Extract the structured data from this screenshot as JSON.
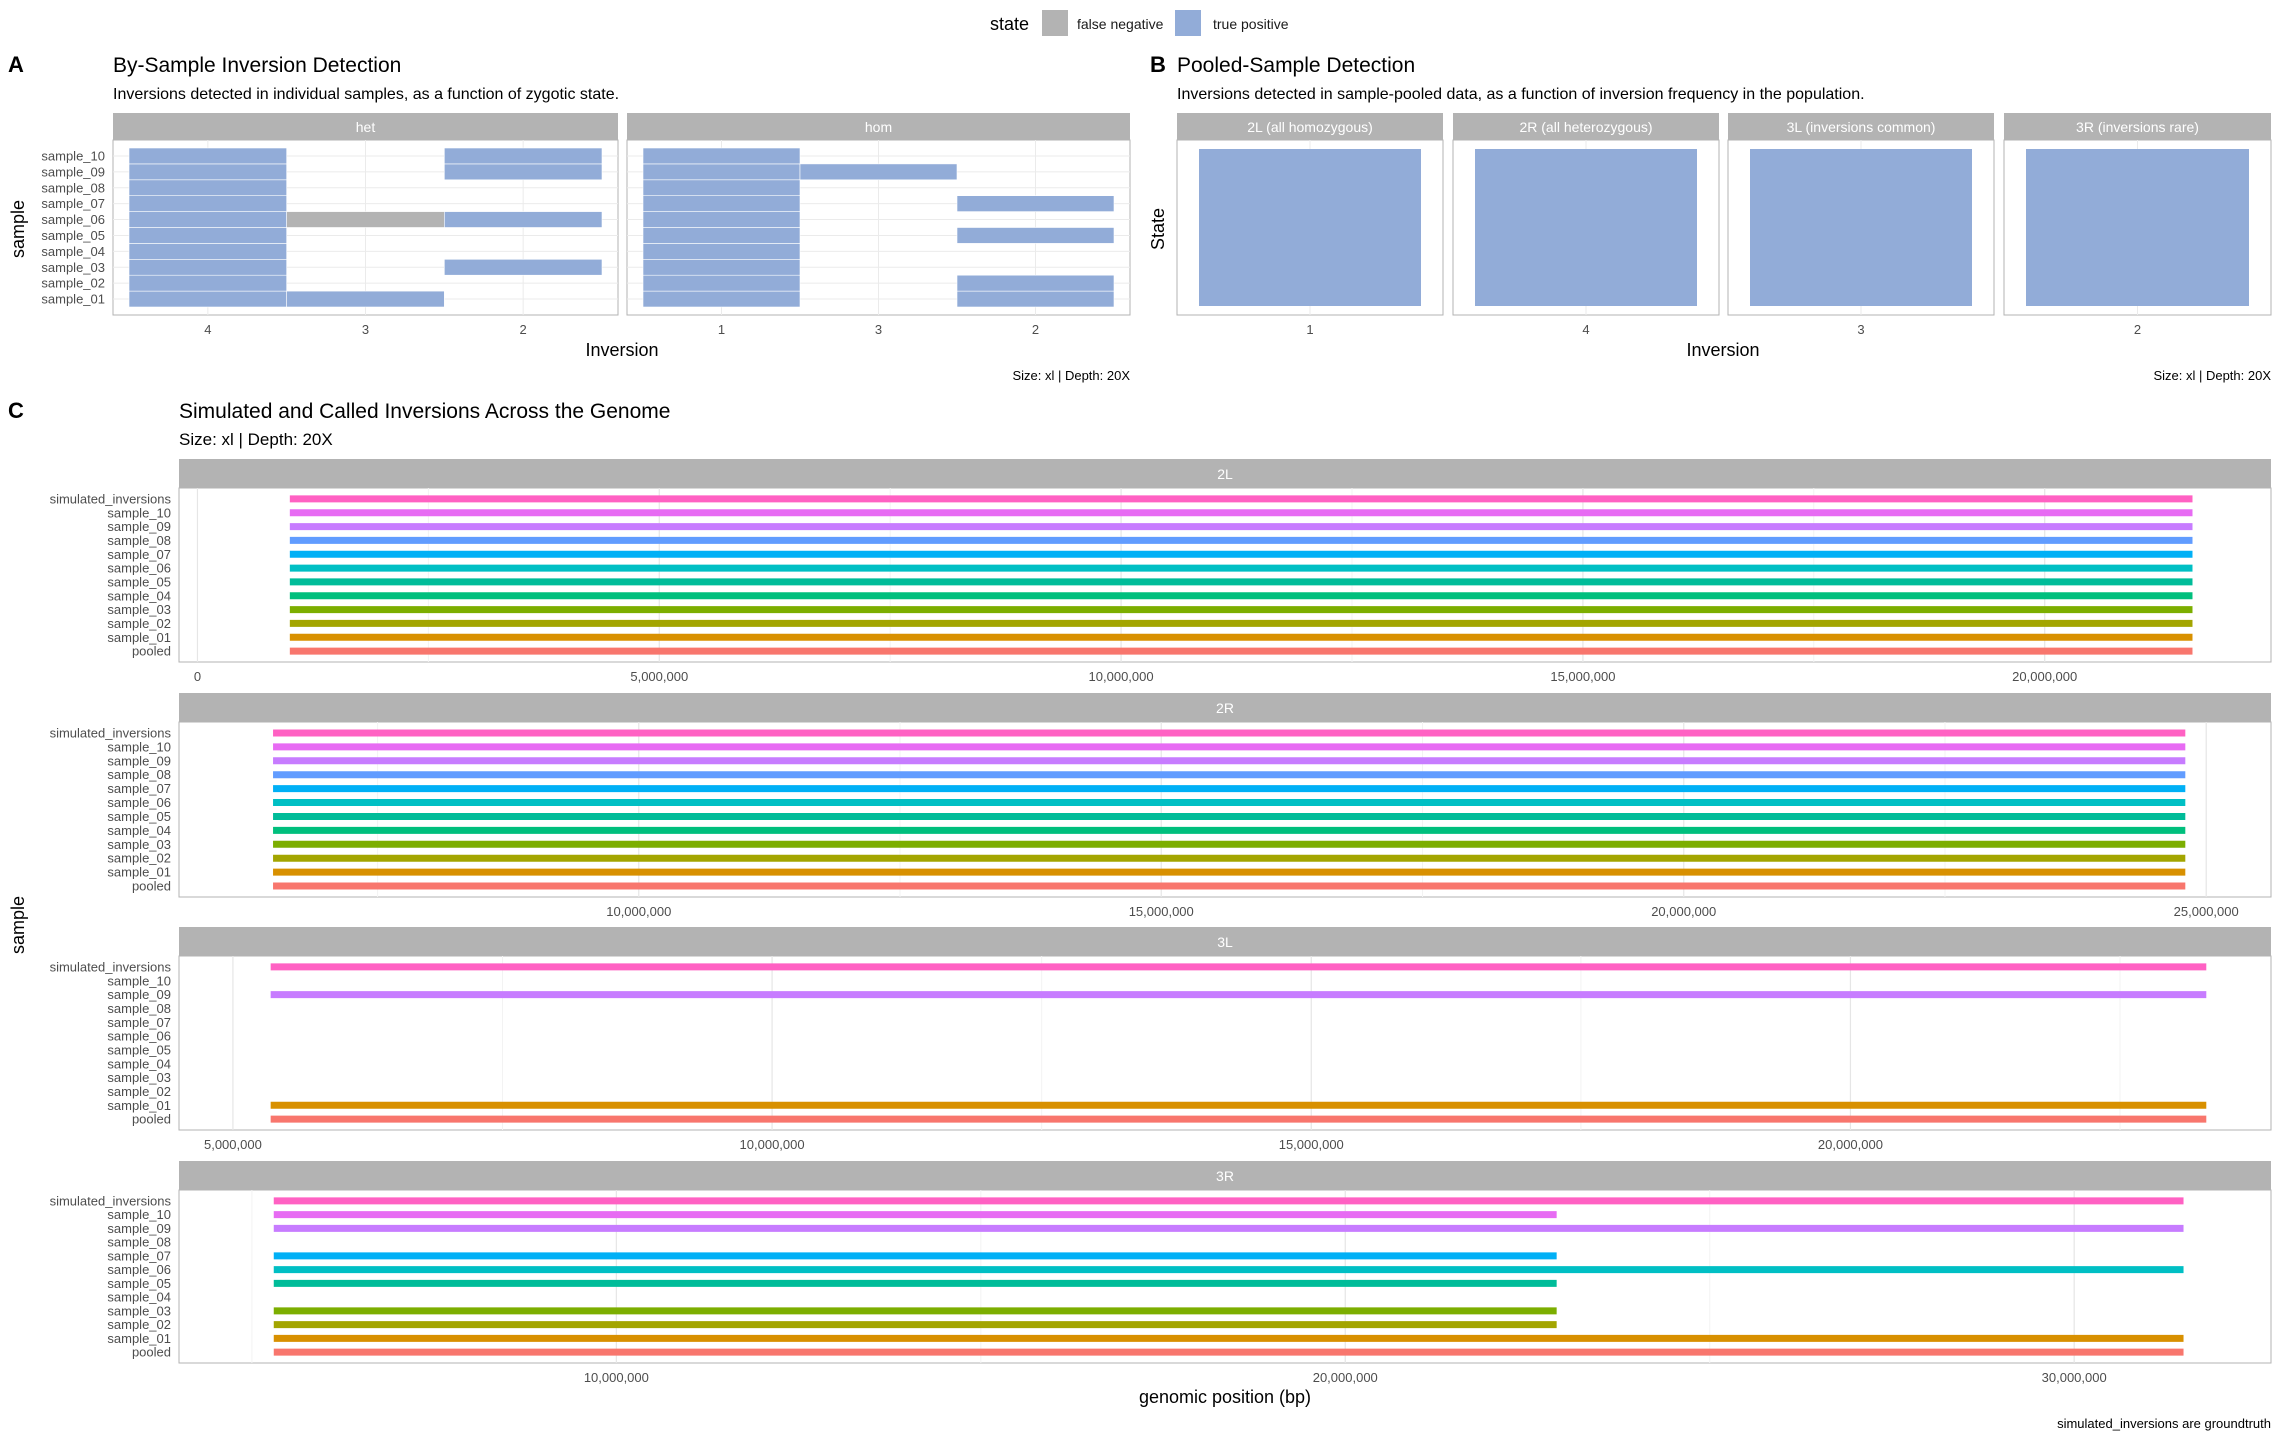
{
  "legend": {
    "title": "state",
    "items": [
      {
        "label": "false negative",
        "color": "#b3b3b3"
      },
      {
        "label": "true positive",
        "color": "#92acd8"
      }
    ]
  },
  "panel_a": {
    "letter": "A",
    "title": "By-Sample Inversion Detection",
    "subtitle": "Inversions detected in individual samples, as a function of zygotic state.",
    "xlabel": "Inversion",
    "ylabel": "sample",
    "caption": "Size: xl | Depth: 20X"
  },
  "panel_b": {
    "letter": "B",
    "title": "Pooled-Sample Detection",
    "subtitle": "Inversions detected in sample-pooled data, as a function of inversion frequency in the population.",
    "xlabel": "Inversion",
    "ylabel": "State",
    "caption": "Size: xl | Depth: 20X"
  },
  "panel_c": {
    "letter": "C",
    "title": "Simulated and Called Inversions Across the Genome",
    "subtitle": "Size: xl | Depth: 20X",
    "xlabel": "genomic position (bp)",
    "ylabel": "sample",
    "caption": "simulated_inversions are groundtruth"
  },
  "chart_data": [
    {
      "type": "heatmap",
      "id": "A",
      "title": "By-Sample Inversion Detection",
      "subtitle": "Inversions detected in individual samples, as a function of zygotic state.",
      "xlabel": "Inversion",
      "ylabel": "sample",
      "samples": [
        "sample_01",
        "sample_02",
        "sample_03",
        "sample_04",
        "sample_05",
        "sample_06",
        "sample_07",
        "sample_08",
        "sample_09",
        "sample_10"
      ],
      "facets": [
        {
          "name": "het",
          "categories": [
            "4",
            "3",
            "2"
          ],
          "cells": [
            {
              "x": "4",
              "y": "sample_01",
              "state": "true positive"
            },
            {
              "x": "4",
              "y": "sample_02",
              "state": "true positive"
            },
            {
              "x": "4",
              "y": "sample_03",
              "state": "true positive"
            },
            {
              "x": "4",
              "y": "sample_04",
              "state": "true positive"
            },
            {
              "x": "4",
              "y": "sample_05",
              "state": "true positive"
            },
            {
              "x": "4",
              "y": "sample_06",
              "state": "true positive"
            },
            {
              "x": "4",
              "y": "sample_07",
              "state": "true positive"
            },
            {
              "x": "4",
              "y": "sample_08",
              "state": "true positive"
            },
            {
              "x": "4",
              "y": "sample_09",
              "state": "true positive"
            },
            {
              "x": "4",
              "y": "sample_10",
              "state": "true positive"
            },
            {
              "x": "3",
              "y": "sample_01",
              "state": "true positive"
            },
            {
              "x": "3",
              "y": "sample_06",
              "state": "false negative"
            },
            {
              "x": "2",
              "y": "sample_03",
              "state": "true positive"
            },
            {
              "x": "2",
              "y": "sample_06",
              "state": "true positive"
            },
            {
              "x": "2",
              "y": "sample_09",
              "state": "true positive"
            },
            {
              "x": "2",
              "y": "sample_10",
              "state": "true positive"
            }
          ]
        },
        {
          "name": "hom",
          "categories": [
            "1",
            "3",
            "2"
          ],
          "cells": [
            {
              "x": "1",
              "y": "sample_01",
              "state": "true positive"
            },
            {
              "x": "1",
              "y": "sample_02",
              "state": "true positive"
            },
            {
              "x": "1",
              "y": "sample_03",
              "state": "true positive"
            },
            {
              "x": "1",
              "y": "sample_04",
              "state": "true positive"
            },
            {
              "x": "1",
              "y": "sample_05",
              "state": "true positive"
            },
            {
              "x": "1",
              "y": "sample_06",
              "state": "true positive"
            },
            {
              "x": "1",
              "y": "sample_07",
              "state": "true positive"
            },
            {
              "x": "1",
              "y": "sample_08",
              "state": "true positive"
            },
            {
              "x": "1",
              "y": "sample_09",
              "state": "true positive"
            },
            {
              "x": "1",
              "y": "sample_10",
              "state": "true positive"
            },
            {
              "x": "3",
              "y": "sample_09",
              "state": "true positive"
            },
            {
              "x": "2",
              "y": "sample_01",
              "state": "true positive"
            },
            {
              "x": "2",
              "y": "sample_02",
              "state": "true positive"
            },
            {
              "x": "2",
              "y": "sample_05",
              "state": "true positive"
            },
            {
              "x": "2",
              "y": "sample_07",
              "state": "true positive"
            }
          ]
        }
      ],
      "caption": "Size: xl | Depth: 20X"
    },
    {
      "type": "bar",
      "id": "B",
      "title": "Pooled-Sample Detection",
      "subtitle": "Inversions detected in sample-pooled data, as a function of inversion frequency in the population.",
      "xlabel": "Inversion",
      "ylabel": "State",
      "facets": [
        {
          "name": "2L (all homozygous)",
          "category": "1",
          "state": "true positive"
        },
        {
          "name": "2R (all heterozygous)",
          "category": "4",
          "state": "true positive"
        },
        {
          "name": "3L (inversions common)",
          "category": "3",
          "state": "true positive"
        },
        {
          "name": "3R (inversions rare)",
          "category": "2",
          "state": "true positive"
        }
      ],
      "caption": "Size: xl | Depth: 20X"
    },
    {
      "type": "bar",
      "id": "C",
      "title": "Simulated and Called Inversions Across the Genome",
      "subtitle": "Size: xl | Depth: 20X",
      "xlabel": "genomic position (bp)",
      "ylabel": "sample",
      "rows": [
        "pooled",
        "sample_01",
        "sample_02",
        "sample_03",
        "sample_04",
        "sample_05",
        "sample_06",
        "sample_07",
        "sample_08",
        "sample_09",
        "sample_10",
        "simulated_inversions"
      ],
      "row_colors": {
        "pooled": "#f8766d",
        "sample_01": "#d89000",
        "sample_02": "#a3a500",
        "sample_03": "#7cae00",
        "sample_04": "#00bf7d",
        "sample_05": "#00bc99",
        "sample_06": "#00bfc4",
        "sample_07": "#00b0f6",
        "sample_08": "#619cff",
        "sample_09": "#c77cff",
        "sample_10": "#e76bf3",
        "simulated_inversions": "#ff61c3"
      },
      "facets": [
        {
          "name": "2L",
          "xlim": [
            -200000,
            22450000
          ],
          "ticks": [
            0,
            5000000,
            10000000,
            15000000,
            20000000
          ],
          "tick_labels": [
            "0",
            "5,000,000",
            "10,000,000",
            "15,000,000",
            "20,000,000"
          ],
          "minor": [
            2500000,
            7500000,
            12500000,
            17500000,
            22500000
          ],
          "segments": [
            {
              "row": "pooled",
              "start": 1000000,
              "end": 21600000
            },
            {
              "row": "sample_01",
              "start": 1000000,
              "end": 21600000
            },
            {
              "row": "sample_02",
              "start": 1000000,
              "end": 21600000
            },
            {
              "row": "sample_03",
              "start": 1000000,
              "end": 21600000
            },
            {
              "row": "sample_04",
              "start": 1000000,
              "end": 21600000
            },
            {
              "row": "sample_05",
              "start": 1000000,
              "end": 21600000
            },
            {
              "row": "sample_06",
              "start": 1000000,
              "end": 21600000
            },
            {
              "row": "sample_07",
              "start": 1000000,
              "end": 21600000
            },
            {
              "row": "sample_08",
              "start": 1000000,
              "end": 21600000
            },
            {
              "row": "sample_09",
              "start": 1000000,
              "end": 21600000
            },
            {
              "row": "sample_10",
              "start": 1000000,
              "end": 21600000
            },
            {
              "row": "simulated_inversions",
              "start": 1000000,
              "end": 21600000
            }
          ]
        },
        {
          "name": "2R",
          "xlim": [
            5600000,
            25620000
          ],
          "ticks": [
            10000000,
            15000000,
            20000000,
            25000000
          ],
          "tick_labels": [
            "10,000,000",
            "15,000,000",
            "20,000,000",
            "25,000,000"
          ],
          "minor": [
            7500000,
            12500000,
            17500000,
            22500000
          ],
          "segments": [
            {
              "row": "pooled",
              "start": 6500000,
              "end": 24800000
            },
            {
              "row": "sample_01",
              "start": 6500000,
              "end": 24800000
            },
            {
              "row": "sample_02",
              "start": 6500000,
              "end": 24800000
            },
            {
              "row": "sample_03",
              "start": 6500000,
              "end": 24800000
            },
            {
              "row": "sample_04",
              "start": 6500000,
              "end": 24800000
            },
            {
              "row": "sample_05",
              "start": 6500000,
              "end": 24800000
            },
            {
              "row": "sample_06",
              "start": 6500000,
              "end": 24800000
            },
            {
              "row": "sample_07",
              "start": 6500000,
              "end": 24800000
            },
            {
              "row": "sample_08",
              "start": 6500000,
              "end": 24800000
            },
            {
              "row": "sample_09",
              "start": 6500000,
              "end": 24800000
            },
            {
              "row": "sample_10",
              "start": 6500000,
              "end": 24800000
            },
            {
              "row": "simulated_inversions",
              "start": 6500000,
              "end": 24800000
            }
          ]
        },
        {
          "name": "3L",
          "xlim": [
            4500000,
            23900000
          ],
          "ticks": [
            5000000,
            10000000,
            15000000,
            20000000
          ],
          "tick_labels": [
            "5,000,000",
            "10,000,000",
            "15,000,000",
            "20,000,000"
          ],
          "minor": [
            7500000,
            12500000,
            17500000,
            22500000
          ],
          "segments": [
            {
              "row": "pooled",
              "start": 5350000,
              "end": 23300000
            },
            {
              "row": "sample_01",
              "start": 5350000,
              "end": 23300000
            },
            {
              "row": "sample_09",
              "start": 5350000,
              "end": 23300000
            },
            {
              "row": "simulated_inversions",
              "start": 5350000,
              "end": 23300000
            }
          ]
        },
        {
          "name": "3R",
          "xlim": [
            4000000,
            32700000
          ],
          "ticks": [
            10000000,
            20000000,
            30000000
          ],
          "tick_labels": [
            "10,000,000",
            "20,000,000",
            "30,000,000"
          ],
          "minor": [
            5000000,
            15000000,
            25000000
          ],
          "segments": [
            {
              "row": "pooled",
              "start": 5300000,
              "end": 31500000
            },
            {
              "row": "sample_01",
              "start": 5300000,
              "end": 31500000
            },
            {
              "row": "sample_02",
              "start": 5300000,
              "end": 22900000
            },
            {
              "row": "sample_03",
              "start": 5300000,
              "end": 22900000
            },
            {
              "row": "sample_05",
              "start": 5300000,
              "end": 22900000
            },
            {
              "row": "sample_06",
              "start": 5300000,
              "end": 31500000
            },
            {
              "row": "sample_07",
              "start": 5300000,
              "end": 22900000
            },
            {
              "row": "sample_09",
              "start": 5300000,
              "end": 31500000
            },
            {
              "row": "sample_10",
              "start": 5300000,
              "end": 22900000
            },
            {
              "row": "simulated_inversions",
              "start": 5300000,
              "end": 31500000
            }
          ]
        }
      ],
      "caption": "simulated_inversions are groundtruth"
    }
  ]
}
